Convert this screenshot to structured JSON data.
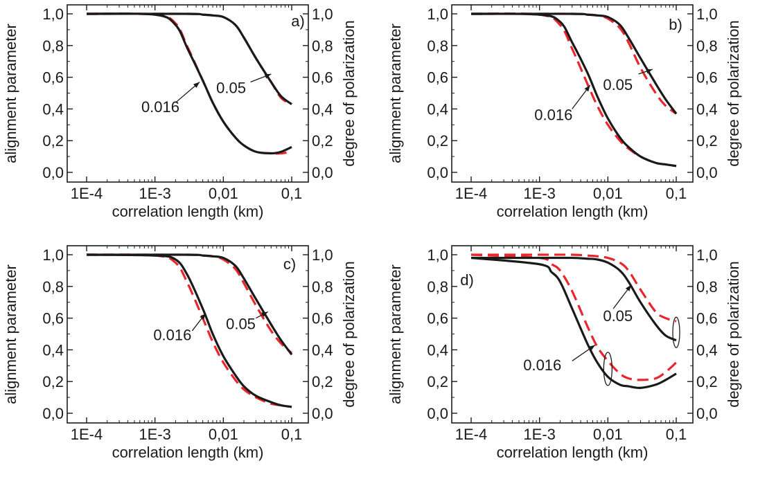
{
  "chart_data": [
    {
      "panel_label": "a)",
      "type": "line",
      "xlabel": "correlation length (km)",
      "ylabel": "alignment parameter",
      "ylabel_right": "degree of polarization",
      "x_scale": "log",
      "xlim": [
        0.0001,
        0.1
      ],
      "ylim": [
        0.0,
        1.0
      ],
      "x_ticks": [
        "1E-4",
        "1E-3",
        "0,01",
        "0,1"
      ],
      "y_ticks": [
        "0,0",
        "0,2",
        "0,4",
        "0,6",
        "0,8",
        "1,0"
      ],
      "y_ticks_right": [
        "0,0",
        "0,2",
        "0,4",
        "0,6",
        "0,8",
        "1,0"
      ],
      "colors": {
        "solid": "#1a1a1a",
        "dashed": "#e8262b"
      },
      "series": [
        {
          "style": "solid",
          "x": [
            0.0001,
            0.001,
            0.002,
            0.003,
            0.005,
            0.007,
            0.01,
            0.015,
            0.02,
            0.03,
            0.05,
            0.07,
            0.1
          ],
          "y": [
            1.0,
            0.995,
            0.93,
            0.78,
            0.58,
            0.44,
            0.32,
            0.22,
            0.17,
            0.13,
            0.12,
            0.13,
            0.16
          ]
        },
        {
          "style": "dashed",
          "x": [
            0.0001,
            0.001,
            0.002,
            0.003,
            0.005,
            0.007,
            0.01,
            0.015,
            0.02,
            0.03,
            0.05,
            0.07,
            0.1
          ],
          "y": [
            1.0,
            0.995,
            0.94,
            0.79,
            0.58,
            0.44,
            0.32,
            0.22,
            0.17,
            0.13,
            0.12,
            0.12,
            0.13
          ]
        },
        {
          "style": "solid",
          "x": [
            0.0001,
            0.003,
            0.005,
            0.007,
            0.01,
            0.015,
            0.02,
            0.03,
            0.05,
            0.07,
            0.1
          ],
          "y": [
            1.0,
            1.0,
            0.995,
            0.99,
            0.98,
            0.93,
            0.85,
            0.72,
            0.57,
            0.48,
            0.43
          ]
        },
        {
          "style": "dashed",
          "x": [
            0.0001,
            0.003,
            0.005,
            0.007,
            0.01,
            0.015,
            0.02,
            0.03,
            0.05,
            0.07,
            0.1
          ],
          "y": [
            1.0,
            1.0,
            0.995,
            0.99,
            0.98,
            0.93,
            0.85,
            0.72,
            0.57,
            0.47,
            0.43
          ]
        }
      ],
      "annotations": [
        {
          "text": "0.016",
          "x": 0.0012,
          "y": 0.38,
          "arrow_from": [
            0.002,
            0.44
          ],
          "arrow_to": [
            0.0045,
            0.57
          ]
        },
        {
          "text": "0.05",
          "x": 0.013,
          "y": 0.5,
          "arrow_from": [
            0.025,
            0.57
          ],
          "arrow_to": [
            0.05,
            0.62
          ]
        }
      ]
    },
    {
      "panel_label": "b)",
      "type": "line",
      "xlabel": "correlation length (km)",
      "ylabel": "alignment parameter",
      "ylabel_right": "degree of polarization",
      "x_scale": "log",
      "xlim": [
        0.0001,
        0.1
      ],
      "ylim": [
        0.0,
        1.0
      ],
      "x_ticks": [
        "1E-4",
        "1E-3",
        "0,01",
        "0,1"
      ],
      "y_ticks": [
        "0,0",
        "0,2",
        "0,4",
        "0,6",
        "0,8",
        "1,0"
      ],
      "y_ticks_right": [
        "0,0",
        "0,2",
        "0,4",
        "0,6",
        "0,8",
        "1,0"
      ],
      "colors": {
        "solid": "#1a1a1a",
        "dashed": "#e8262b"
      },
      "series": [
        {
          "style": "solid",
          "x": [
            0.0001,
            0.001,
            0.002,
            0.003,
            0.005,
            0.007,
            0.01,
            0.015,
            0.02,
            0.03,
            0.05,
            0.07,
            0.1
          ],
          "y": [
            1.0,
            0.995,
            0.95,
            0.82,
            0.63,
            0.48,
            0.34,
            0.22,
            0.16,
            0.1,
            0.06,
            0.05,
            0.04
          ]
        },
        {
          "style": "dashed",
          "x": [
            0.0001,
            0.001,
            0.002,
            0.003,
            0.005,
            0.007,
            0.01,
            0.015,
            0.02,
            0.03,
            0.05,
            0.07,
            0.1
          ],
          "y": [
            1.0,
            0.995,
            0.93,
            0.78,
            0.56,
            0.42,
            0.3,
            0.2,
            0.15,
            0.1,
            0.06,
            0.05,
            0.04
          ]
        },
        {
          "style": "solid",
          "x": [
            0.0001,
            0.003,
            0.005,
            0.007,
            0.01,
            0.015,
            0.02,
            0.03,
            0.05,
            0.07,
            0.1
          ],
          "y": [
            1.0,
            1.0,
            0.995,
            0.99,
            0.98,
            0.93,
            0.85,
            0.72,
            0.56,
            0.46,
            0.37
          ]
        },
        {
          "style": "dashed",
          "x": [
            0.0001,
            0.003,
            0.005,
            0.007,
            0.01,
            0.015,
            0.02,
            0.03,
            0.05,
            0.07,
            0.1
          ],
          "y": [
            1.0,
            1.0,
            0.995,
            0.99,
            0.97,
            0.91,
            0.82,
            0.66,
            0.5,
            0.42,
            0.37
          ]
        }
      ],
      "annotations": [
        {
          "text": "0.016",
          "x": 0.0016,
          "y": 0.33,
          "arrow_from": [
            0.003,
            0.4
          ],
          "arrow_to": [
            0.0055,
            0.55
          ]
        },
        {
          "text": "0.05",
          "x": 0.014,
          "y": 0.52,
          "arrow_from": [
            0.028,
            0.62
          ],
          "arrow_to": [
            0.045,
            0.65
          ]
        }
      ]
    },
    {
      "panel_label": "c)",
      "type": "line",
      "xlabel": "correlation length (km)",
      "ylabel": "alignment parameter",
      "ylabel_right": "degree of polarization",
      "x_scale": "log",
      "xlim": [
        0.0001,
        0.1
      ],
      "ylim": [
        0.0,
        1.0
      ],
      "x_ticks": [
        "1E-4",
        "1E-3",
        "0,01",
        "0,1"
      ],
      "y_ticks": [
        "0,0",
        "0,2",
        "0,4",
        "0,6",
        "0,8",
        "1,0"
      ],
      "y_ticks_right": [
        "0,0",
        "0,2",
        "0,4",
        "0,6",
        "0,8",
        "1,0"
      ],
      "colors": {
        "solid": "#1a1a1a",
        "dashed": "#e8262b"
      },
      "series": [
        {
          "style": "solid",
          "x": [
            0.0001,
            0.001,
            0.002,
            0.003,
            0.005,
            0.007,
            0.01,
            0.015,
            0.02,
            0.03,
            0.05,
            0.07,
            0.1
          ],
          "y": [
            1.0,
            0.995,
            0.97,
            0.87,
            0.66,
            0.5,
            0.36,
            0.24,
            0.17,
            0.11,
            0.07,
            0.05,
            0.04
          ]
        },
        {
          "style": "dashed",
          "x": [
            0.0001,
            0.001,
            0.002,
            0.003,
            0.005,
            0.007,
            0.01,
            0.015,
            0.02,
            0.03,
            0.05,
            0.07,
            0.1
          ],
          "y": [
            1.0,
            0.995,
            0.95,
            0.82,
            0.6,
            0.45,
            0.32,
            0.21,
            0.15,
            0.1,
            0.06,
            0.05,
            0.04
          ]
        },
        {
          "style": "solid",
          "x": [
            0.0001,
            0.003,
            0.005,
            0.007,
            0.01,
            0.015,
            0.02,
            0.03,
            0.05,
            0.07,
            0.1
          ],
          "y": [
            1.0,
            1.0,
            0.995,
            0.99,
            0.98,
            0.93,
            0.85,
            0.72,
            0.56,
            0.46,
            0.37
          ]
        },
        {
          "style": "dashed",
          "x": [
            0.0001,
            0.003,
            0.005,
            0.007,
            0.01,
            0.015,
            0.02,
            0.03,
            0.05,
            0.07,
            0.1
          ],
          "y": [
            1.0,
            1.0,
            0.995,
            0.99,
            0.97,
            0.91,
            0.82,
            0.68,
            0.52,
            0.44,
            0.38
          ]
        }
      ],
      "annotations": [
        {
          "text": "0.016",
          "x": 0.0018,
          "y": 0.46,
          "arrow_from": [
            0.0035,
            0.52
          ],
          "arrow_to": [
            0.0055,
            0.63
          ]
        },
        {
          "text": "0.05",
          "x": 0.018,
          "y": 0.53,
          "arrow_from": [
            0.03,
            0.6
          ],
          "arrow_to": [
            0.045,
            0.64
          ]
        }
      ]
    },
    {
      "panel_label": "d)",
      "type": "line",
      "xlabel": "correlation length (km)",
      "ylabel": "alignment parameter",
      "ylabel_right": "degree of polarization",
      "x_scale": "log",
      "xlim": [
        0.0001,
        0.1
      ],
      "ylim": [
        0.0,
        1.0
      ],
      "x_ticks": [
        "1E-4",
        "1E-3",
        "0,01",
        "0,1"
      ],
      "y_ticks": [
        "0,0",
        "0,2",
        "0,4",
        "0,6",
        "0,8",
        "1,0"
      ],
      "y_ticks_right": [
        "0,0",
        "0,2",
        "0,4",
        "0,6",
        "0,8",
        "1,0"
      ],
      "colors": {
        "solid": "#1a1a1a",
        "dashed": "#e8262b"
      },
      "series": [
        {
          "style": "solid",
          "x": [
            0.0001,
            0.001,
            0.0015,
            0.002,
            0.003,
            0.005,
            0.007,
            0.01,
            0.015,
            0.02,
            0.03,
            0.05,
            0.07,
            0.1
          ],
          "y": [
            0.98,
            0.94,
            0.89,
            0.83,
            0.66,
            0.44,
            0.32,
            0.23,
            0.18,
            0.17,
            0.16,
            0.18,
            0.21,
            0.25
          ]
        },
        {
          "style": "dashed",
          "x": [
            0.0001,
            0.001,
            0.0015,
            0.002,
            0.003,
            0.005,
            0.007,
            0.01,
            0.015,
            0.02,
            0.03,
            0.05,
            0.07,
            0.1
          ],
          "y": [
            1.0,
            0.98,
            0.94,
            0.9,
            0.77,
            0.55,
            0.42,
            0.33,
            0.25,
            0.22,
            0.21,
            0.22,
            0.26,
            0.32
          ]
        },
        {
          "style": "solid",
          "x": [
            0.0001,
            0.001,
            0.003,
            0.005,
            0.007,
            0.01,
            0.015,
            0.02,
            0.03,
            0.05,
            0.07,
            0.1
          ],
          "y": [
            0.98,
            0.98,
            0.98,
            0.975,
            0.97,
            0.95,
            0.9,
            0.83,
            0.7,
            0.56,
            0.49,
            0.46
          ]
        },
        {
          "style": "dashed",
          "x": [
            0.0001,
            0.001,
            0.003,
            0.005,
            0.007,
            0.01,
            0.015,
            0.02,
            0.03,
            0.05,
            0.07,
            0.1
          ],
          "y": [
            1.0,
            1.0,
            1.0,
            0.995,
            0.99,
            0.98,
            0.95,
            0.9,
            0.78,
            0.64,
            0.6,
            0.58
          ]
        }
      ],
      "annotations": [
        {
          "text": "0.016",
          "x": 0.0011,
          "y": 0.27,
          "arrow_from": [
            0.003,
            0.33
          ],
          "arrow_to": [
            0.0065,
            0.43
          ]
        },
        {
          "text": "0.05",
          "x": 0.014,
          "y": 0.58,
          "arrow_from": [
            0.012,
            0.66
          ],
          "arrow_to": [
            0.022,
            0.81
          ]
        }
      ]
    }
  ]
}
